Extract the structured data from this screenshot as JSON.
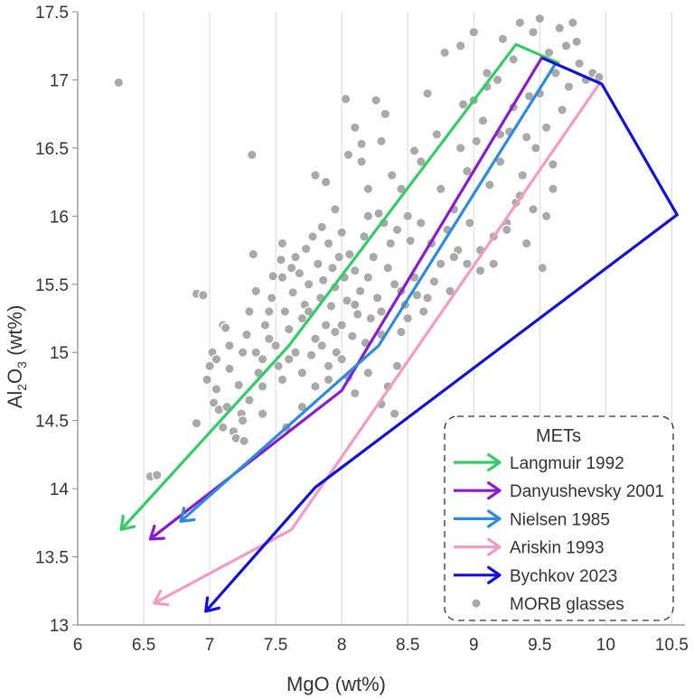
{
  "chart_data": {
    "type": "scatter",
    "title": "",
    "xlabel": "MgO (wt%)",
    "ylabel_main": "Al",
    "ylabel_sub": "2",
    "ylabel_rest": "O",
    "ylabel_sub2": "3",
    "ylabel_tail": " (wt%)",
    "xlim": [
      6,
      10.6
    ],
    "ylim": [
      13,
      17.5
    ],
    "xticks": [
      "6",
      "6.5",
      "7",
      "7.5",
      "8",
      "8.5",
      "9",
      "9.5",
      "10",
      "10.5"
    ],
    "yticks": [
      "13",
      "13.5",
      "14",
      "14.5",
      "15",
      "15.5",
      "16",
      "16.5",
      "17",
      "17.5"
    ],
    "xtick_values": [
      6,
      6.5,
      7,
      7.5,
      8,
      8.5,
      9,
      9.5,
      10,
      10.5
    ],
    "ytick_values": [
      13,
      13.5,
      14,
      14.5,
      15,
      15.5,
      16,
      16.5,
      17,
      17.5
    ],
    "grid": "vertical",
    "legend_title": "METs",
    "legend_placement": "bottom-right",
    "lines": [
      {
        "name": "Langmuir 1992",
        "color": "#33cc66",
        "points": [
          [
            9.65,
            17.12
          ],
          [
            9.32,
            17.26
          ],
          [
            7.6,
            15.05
          ],
          [
            6.33,
            13.7
          ]
        ]
      },
      {
        "name": "Danyushevsky 2001",
        "color": "#8a1ad1",
        "points": [
          [
            9.52,
            17.17
          ],
          [
            8.0,
            14.72
          ],
          [
            6.55,
            13.63
          ]
        ]
      },
      {
        "name": "Nielsen 1985",
        "color": "#2b8cdf",
        "points": [
          [
            9.62,
            17.12
          ],
          [
            8.28,
            15.05
          ],
          [
            6.78,
            13.76
          ]
        ]
      },
      {
        "name": "Ariskin 1993",
        "color": "#f59ac4",
        "points": [
          [
            9.95,
            16.97
          ],
          [
            7.62,
            13.7
          ],
          [
            6.58,
            13.16
          ]
        ]
      },
      {
        "name": "Bychkov 2023",
        "color": "#1111dd",
        "points": [
          [
            9.52,
            17.16
          ],
          [
            9.97,
            16.97
          ],
          [
            10.54,
            16.01
          ],
          [
            7.8,
            14.01
          ],
          [
            6.97,
            13.1
          ]
        ]
      }
    ],
    "scatter_series": {
      "name": "MORB glasses",
      "color": "#a9a9a9",
      "points": [
        [
          6.31,
          16.98
        ],
        [
          6.55,
          14.09
        ],
        [
          6.6,
          14.1
        ],
        [
          6.9,
          15.43
        ],
        [
          6.95,
          15.42
        ],
        [
          6.98,
          14.8
        ],
        [
          7.0,
          14.9
        ],
        [
          7.02,
          15.0
        ],
        [
          6.9,
          14.48
        ],
        [
          7.03,
          14.63
        ],
        [
          7.05,
          14.73
        ],
        [
          7.07,
          14.58
        ],
        [
          7.1,
          15.2
        ],
        [
          7.12,
          15.18
        ],
        [
          7.13,
          14.6
        ],
        [
          7.15,
          14.88
        ],
        [
          7.18,
          14.42
        ],
        [
          7.2,
          14.37
        ],
        [
          7.22,
          14.76
        ],
        [
          7.24,
          14.55
        ],
        [
          7.26,
          14.35
        ],
        [
          7.28,
          15.13
        ],
        [
          7.3,
          15.3
        ],
        [
          7.33,
          15.72
        ],
        [
          7.32,
          16.45
        ],
        [
          7.35,
          15.0
        ],
        [
          7.37,
          14.85
        ],
        [
          7.4,
          14.95
        ],
        [
          7.42,
          15.2
        ],
        [
          7.45,
          15.1
        ],
        [
          7.47,
          15.4
        ],
        [
          7.48,
          15.56
        ],
        [
          7.5,
          15.05
        ],
        [
          7.52,
          14.9
        ],
        [
          7.54,
          15.68
        ],
        [
          7.55,
          15.8
        ],
        [
          7.57,
          15.3
        ],
        [
          7.58,
          14.45
        ],
        [
          7.6,
          15.17
        ],
        [
          7.62,
          15.62
        ],
        [
          7.63,
          15.44
        ],
        [
          7.65,
          15.0
        ],
        [
          7.68,
          15.58
        ],
        [
          7.7,
          15.25
        ],
        [
          7.72,
          15.35
        ],
        [
          7.73,
          15.76
        ],
        [
          7.75,
          15.5
        ],
        [
          7.77,
          14.98
        ],
        [
          7.78,
          15.85
        ],
        [
          7.8,
          15.1
        ],
        [
          7.8,
          16.3
        ],
        [
          7.82,
          15.65
        ],
        [
          7.84,
          15.4
        ],
        [
          7.85,
          15.92
        ],
        [
          7.86,
          15.53
        ],
        [
          7.88,
          15.2
        ],
        [
          7.9,
          15.8
        ],
        [
          7.92,
          15.34
        ],
        [
          7.93,
          15.62
        ],
        [
          7.95,
          15.48
        ],
        [
          7.96,
          15.0
        ],
        [
          7.98,
          15.7
        ],
        [
          8.0,
          15.88
        ],
        [
          8.0,
          15.2
        ],
        [
          8.02,
          15.55
        ],
        [
          8.03,
          16.86
        ],
        [
          8.04,
          15.38
        ],
        [
          8.06,
          15.72
        ],
        [
          8.08,
          15.12
        ],
        [
          8.1,
          16.65
        ],
        [
          8.1,
          15.6
        ],
        [
          8.12,
          15.28
        ],
        [
          8.14,
          15.45
        ],
        [
          8.15,
          16.53
        ],
        [
          8.17,
          15.85
        ],
        [
          8.18,
          15.07
        ],
        [
          8.2,
          16.2
        ],
        [
          8.2,
          15.55
        ],
        [
          8.22,
          15.25
        ],
        [
          8.24,
          15.7
        ],
        [
          8.26,
          16.85
        ],
        [
          8.27,
          15.4
        ],
        [
          8.28,
          16.02
        ],
        [
          8.3,
          15.13
        ],
        [
          8.32,
          15.95
        ],
        [
          8.33,
          16.75
        ],
        [
          8.35,
          15.62
        ],
        [
          8.37,
          15.8
        ],
        [
          8.38,
          16.3
        ],
        [
          8.4,
          15.5
        ],
        [
          8.42,
          15.9
        ],
        [
          8.45,
          15.15
        ],
        [
          8.48,
          15.35
        ],
        [
          8.5,
          16.0
        ],
        [
          8.52,
          15.82
        ],
        [
          8.55,
          16.48
        ],
        [
          8.57,
          15.42
        ],
        [
          8.6,
          16.4
        ],
        [
          8.62,
          15.3
        ],
        [
          8.65,
          16.9
        ],
        [
          8.68,
          15.8
        ],
        [
          8.7,
          15.52
        ],
        [
          8.72,
          16.6
        ],
        [
          8.75,
          15.65
        ],
        [
          8.78,
          17.2
        ],
        [
          8.8,
          15.9
        ],
        [
          8.82,
          15.45
        ],
        [
          8.85,
          16.05
        ],
        [
          8.88,
          15.75
        ],
        [
          8.9,
          17.25
        ],
        [
          8.92,
          16.82
        ],
        [
          8.95,
          16.33
        ],
        [
          8.97,
          15.95
        ],
        [
          9.0,
          17.35
        ],
        [
          9.02,
          16.55
        ],
        [
          9.05,
          15.6
        ],
        [
          9.07,
          16.7
        ],
        [
          9.1,
          17.05
        ],
        [
          9.12,
          16.23
        ],
        [
          9.15,
          15.85
        ],
        [
          9.18,
          17.0
        ],
        [
          9.2,
          16.4
        ],
        [
          9.22,
          17.3
        ],
        [
          9.25,
          15.95
        ],
        [
          9.27,
          16.62
        ],
        [
          9.3,
          17.15
        ],
        [
          9.32,
          16.1
        ],
        [
          9.35,
          17.42
        ],
        [
          9.37,
          16.3
        ],
        [
          9.4,
          15.8
        ],
        [
          9.42,
          16.88
        ],
        [
          9.45,
          17.35
        ],
        [
          9.47,
          16.5
        ],
        [
          9.5,
          17.45
        ],
        [
          9.52,
          15.62
        ],
        [
          9.55,
          16.65
        ],
        [
          9.57,
          17.2
        ],
        [
          9.6,
          16.2
        ],
        [
          9.62,
          17.05
        ],
        [
          9.65,
          17.38
        ],
        [
          9.67,
          16.78
        ],
        [
          9.7,
          17.25
        ],
        [
          9.72,
          16.95
        ],
        [
          9.75,
          17.42
        ],
        [
          9.78,
          17.28
        ],
        [
          9.8,
          17.12
        ],
        [
          9.85,
          17.0
        ],
        [
          9.9,
          17.05
        ],
        [
          9.95,
          17.02
        ],
        [
          8.4,
          14.55
        ],
        [
          8.35,
          14.75
        ],
        [
          8.42,
          14.9
        ],
        [
          8.2,
          14.85
        ],
        [
          8.1,
          14.7
        ],
        [
          8.3,
          14.62
        ],
        [
          7.9,
          14.9
        ],
        [
          7.7,
          14.6
        ],
        [
          7.4,
          14.75
        ],
        [
          7.25,
          14.5
        ],
        [
          7.1,
          14.45
        ],
        [
          7.6,
          14.95
        ],
        [
          7.8,
          14.75
        ],
        [
          8.0,
          14.95
        ],
        [
          8.45,
          15.45
        ],
        [
          8.55,
          15.55
        ],
        [
          8.65,
          15.4
        ],
        [
          8.3,
          15.3
        ],
        [
          8.5,
          15.25
        ],
        [
          8.1,
          15.35
        ],
        [
          7.95,
          15.15
        ],
        [
          7.85,
          15.05
        ],
        [
          7.75,
          15.3
        ],
        [
          7.65,
          15.7
        ],
        [
          7.55,
          15.55
        ],
        [
          7.45,
          15.3
        ],
        [
          7.35,
          15.45
        ],
        [
          7.25,
          15.0
        ],
        [
          7.15,
          15.05
        ],
        [
          7.05,
          14.95
        ],
        [
          7.3,
          14.65
        ],
        [
          7.4,
          14.55
        ],
        [
          7.55,
          14.8
        ],
        [
          7.7,
          14.85
        ],
        [
          7.9,
          14.8
        ],
        [
          8.05,
          14.82
        ],
        [
          9.15,
          15.65
        ],
        [
          9.05,
          15.75
        ],
        [
          9.25,
          15.9
        ],
        [
          8.95,
          15.65
        ],
        [
          8.85,
          15.7
        ],
        [
          9.45,
          16.05
        ],
        [
          9.55,
          16.0
        ],
        [
          9.35,
          16.15
        ],
        [
          9.6,
          16.38
        ],
        [
          9.4,
          16.58
        ],
        [
          9.1,
          16.95
        ],
        [
          9.0,
          16.85
        ],
        [
          8.9,
          16.5
        ],
        [
          9.2,
          16.6
        ],
        [
          8.6,
          15.95
        ],
        [
          8.75,
          16.2
        ],
        [
          8.45,
          16.2
        ],
        [
          8.2,
          16.0
        ],
        [
          8.3,
          16.55
        ],
        [
          8.15,
          16.4
        ],
        [
          7.88,
          16.25
        ],
        [
          7.95,
          16.05
        ],
        [
          8.05,
          16.45
        ],
        [
          9.3,
          16.8
        ],
        [
          9.5,
          16.9
        ]
      ]
    }
  }
}
